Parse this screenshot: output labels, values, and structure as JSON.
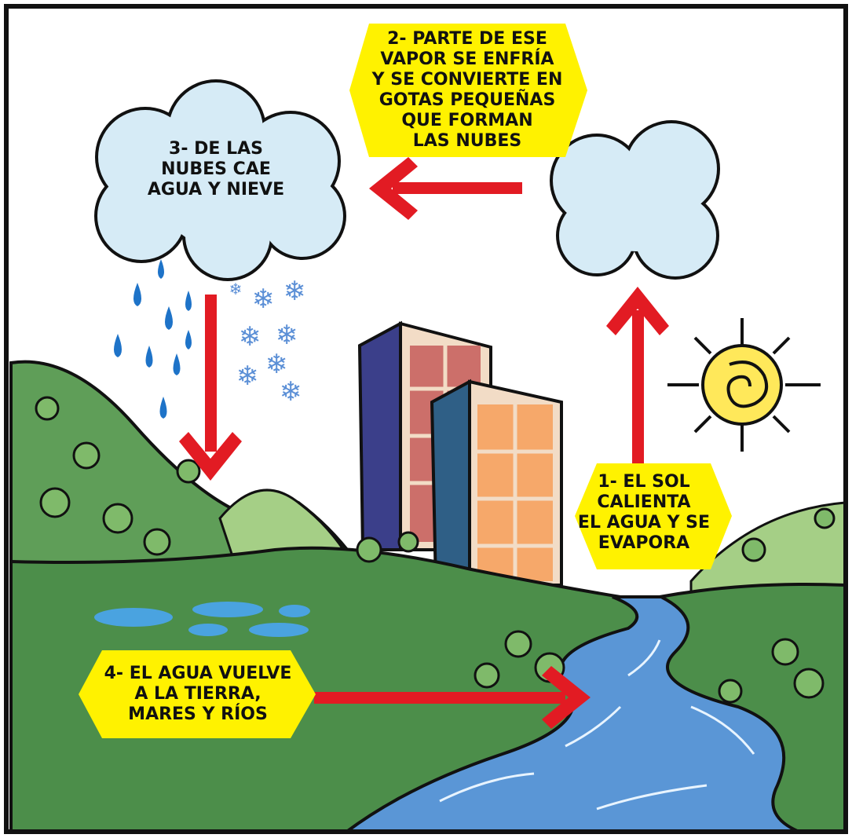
{
  "steps": [
    {
      "lines": [
        "1- EL SOL",
        "CALIENTA",
        "EL AGUA Y SE",
        "EVAPORA"
      ]
    },
    {
      "lines": [
        "2- PARTE DE ESE",
        "VAPOR SE ENFRÍA",
        "Y SE CONVIERTE EN",
        "GOTAS PEQUEÑAS",
        "QUE FORMAN",
        "LAS NUBES"
      ]
    },
    {
      "lines": [
        "3- DE LAS",
        "NUBES CAE",
        "AGUA Y NIEVE"
      ]
    },
    {
      "lines": [
        "4- EL AGUA VUELVE",
        "A LA TIERRA,",
        "MARES Y RÍOS"
      ]
    }
  ]
}
